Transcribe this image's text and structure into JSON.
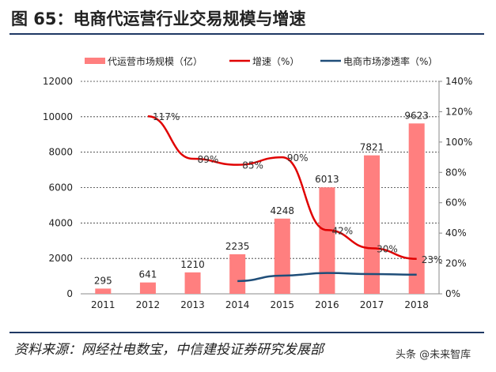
{
  "title": "图 65：电商代运营行业交易规模与增速",
  "source": "资料来源：网经社电数宝，中信建投证券研究发展部",
  "watermark": "头条 @未来智库",
  "chart_data": {
    "type": "bar+line",
    "categories": [
      "2011",
      "2012",
      "2013",
      "2014",
      "2015",
      "2016",
      "2017",
      "2018"
    ],
    "left_axis": {
      "ylim": [
        0,
        12000
      ],
      "ticks": [
        "0",
        "2000",
        "4000",
        "6000",
        "8000",
        "10000",
        "12000"
      ]
    },
    "right_axis": {
      "ylim": [
        0,
        140
      ],
      "ticks": [
        "0%",
        "20%",
        "40%",
        "60%",
        "80%",
        "100%",
        "120%",
        "140%"
      ]
    },
    "grid": true,
    "legend_position": "top",
    "series": [
      {
        "name": "代运营市场规模（亿）",
        "type": "bar",
        "axis": "left",
        "color": "#ff7f7f",
        "values": [
          295,
          641,
          1210,
          2235,
          4248,
          6013,
          7821,
          9623
        ],
        "labels": [
          "295",
          "641",
          "1210",
          "2235",
          "4248",
          "6013",
          "7821",
          "9623"
        ]
      },
      {
        "name": "增速（%）",
        "type": "line",
        "axis": "right",
        "color": "#e00000",
        "values": [
          null,
          117,
          89,
          85,
          90,
          42,
          30,
          23
        ],
        "labels": [
          "",
          "117%",
          "89%",
          "85%",
          "90%",
          "42%",
          "30%",
          "23%"
        ]
      },
      {
        "name": "电商市场渗透率（%）",
        "type": "line",
        "axis": "right",
        "color": "#1f4e79",
        "values": [
          null,
          null,
          null,
          8.4,
          12,
          13.7,
          13,
          12.6
        ]
      }
    ]
  }
}
